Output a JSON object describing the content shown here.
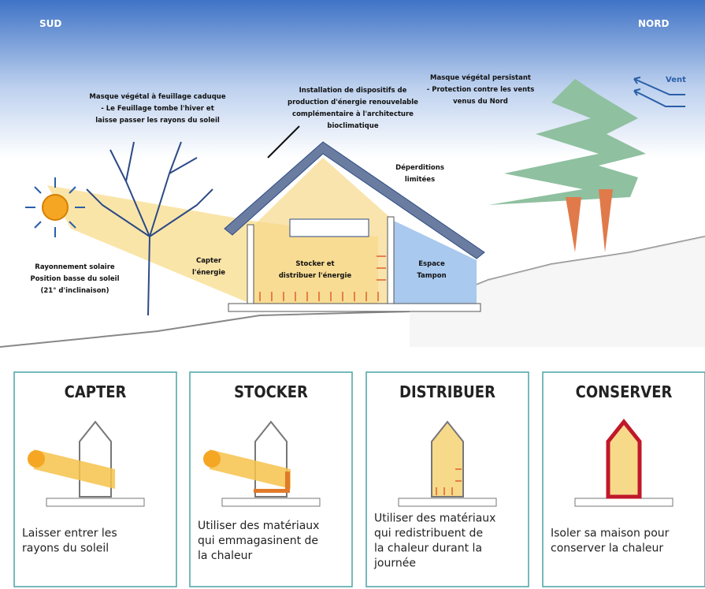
{
  "header": {
    "south": "SUD",
    "north": "NORD",
    "wind": "Vent"
  },
  "labels": [
    {
      "lines": [
        "Masque végétal à feuillage caduque",
        "- Le Feuillage tombe l'hiver et",
        "laisse passer les rayons du soleil"
      ]
    },
    {
      "lines": [
        "Installation de dispositifs de",
        "production d'énergie renouvelable",
        "complémentaire à l'architecture",
        "bioclimatique"
      ]
    },
    {
      "lines": [
        "Masque végétal persistant",
        "- Protection contre les vents",
        "venus du Nord"
      ]
    },
    {
      "lines": [
        "Déperditions",
        "limitées"
      ]
    },
    {
      "lines": [
        "Rayonnement solaire",
        "Position basse du soleil",
        "(21° d'inclinaison)"
      ]
    },
    {
      "lines": [
        "Capter",
        "l'énergie"
      ]
    },
    {
      "lines": [
        "Stocker et",
        "distribuer l'énergie"
      ]
    },
    {
      "lines": [
        "Espace",
        "Tampon"
      ]
    }
  ],
  "cards": [
    {
      "title": "CAPTER",
      "lines": [
        "Laisser entrer les",
        "rayons du soleil"
      ]
    },
    {
      "title": "STOCKER",
      "lines": [
        "Utiliser des matériaux",
        "qui emmagasinent de",
        "la chaleur"
      ]
    },
    {
      "title": "DISTRIBUER",
      "lines": [
        "Utiliser des matériaux",
        "qui redistribuent de",
        "la chaleur durant la",
        "journée"
      ]
    },
    {
      "title": "CONSERVER",
      "lines": [
        "Isoler sa maison pour",
        "conserver la chaleur"
      ]
    }
  ]
}
